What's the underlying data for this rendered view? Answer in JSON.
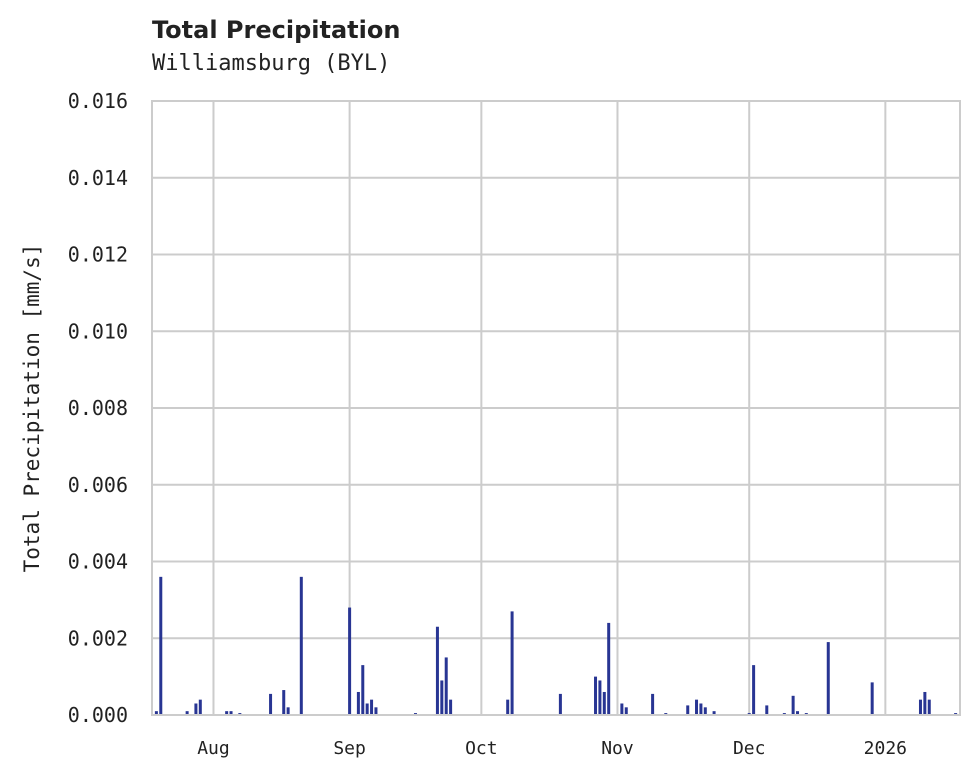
{
  "chart_data": {
    "type": "bar",
    "title": "Total Precipitation",
    "subtitle": "Williamsburg (BYL)",
    "xlabel": "",
    "ylabel": "Total Precipitation [mm/s]",
    "ylim": [
      0,
      0.016
    ],
    "yticks": [
      "0.000",
      "0.002",
      "0.004",
      "0.006",
      "0.008",
      "0.010",
      "0.012",
      "0.014",
      "0.016"
    ],
    "xticks": [
      "Aug",
      "Sep",
      "Oct",
      "Nov",
      "Dec",
      "2026"
    ],
    "x_range": [
      "2025-07-18",
      "2026-01-18"
    ],
    "grid": true,
    "bar_color": "#283593",
    "x": [
      "2025-07-19",
      "2025-07-20",
      "2025-07-26",
      "2025-07-28",
      "2025-07-29",
      "2025-08-04",
      "2025-08-05",
      "2025-08-07",
      "2025-08-14",
      "2025-08-17",
      "2025-08-18",
      "2025-08-21",
      "2025-09-01",
      "2025-09-03",
      "2025-09-04",
      "2025-09-05",
      "2025-09-06",
      "2025-09-07",
      "2025-09-16",
      "2025-09-21",
      "2025-09-22",
      "2025-09-23",
      "2025-09-24",
      "2025-10-07",
      "2025-10-08",
      "2025-10-19",
      "2025-10-27",
      "2025-10-28",
      "2025-10-29",
      "2025-10-30",
      "2025-11-02",
      "2025-11-03",
      "2025-11-09",
      "2025-11-12",
      "2025-11-17",
      "2025-11-19",
      "2025-11-20",
      "2025-11-21",
      "2025-11-23",
      "2025-12-01",
      "2025-12-02",
      "2025-12-05",
      "2025-12-09",
      "2025-12-11",
      "2025-12-12",
      "2025-12-14",
      "2025-12-19",
      "2025-12-29",
      "2026-01-09",
      "2026-01-10",
      "2026-01-11",
      "2026-01-17"
    ],
    "values": [
      0.0001,
      0.0036,
      0.0001,
      0.0003,
      0.0004,
      0.0001,
      0.0001,
      5e-05,
      0.00055,
      0.00065,
      0.0002,
      0.0036,
      0.0028,
      0.0006,
      0.0013,
      0.0003,
      0.0004,
      0.0002,
      5e-05,
      0.0023,
      0.0009,
      0.0015,
      0.0004,
      0.0004,
      0.0027,
      0.00055,
      0.001,
      0.0009,
      0.0006,
      0.0024,
      0.0003,
      0.0002,
      0.00055,
      5e-05,
      0.00025,
      0.0004,
      0.0003,
      0.0002,
      0.0001,
      5e-05,
      0.0013,
      0.00025,
      5e-05,
      0.0005,
      0.0001,
      5e-05,
      0.0019,
      0.00085,
      0.0004,
      0.0006,
      0.0004,
      5e-05
    ]
  }
}
